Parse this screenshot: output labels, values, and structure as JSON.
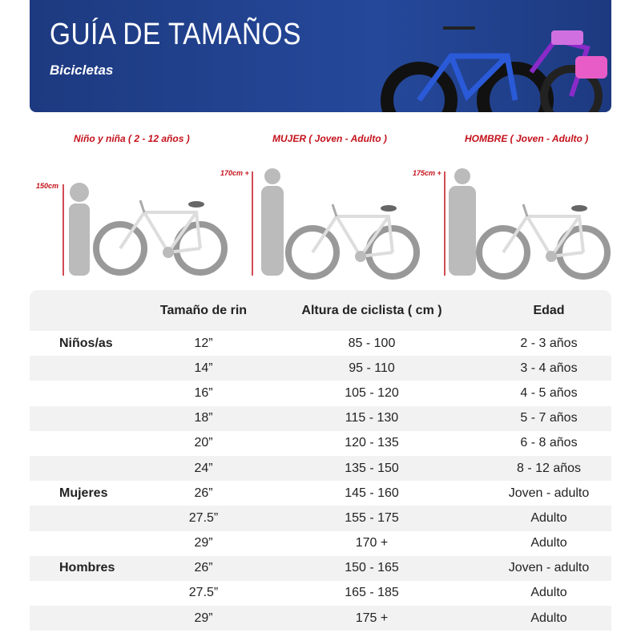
{
  "header": {
    "title": "GUÍA DE TAMAÑOS",
    "subtitle": "Bicicletas"
  },
  "categories": [
    {
      "label": "Niño y niña ( 2 - 12 años )",
      "height_label": "150cm"
    },
    {
      "label": "MUJER ( Joven - Adulto )",
      "height_label": "170cm +"
    },
    {
      "label": "HOMBRE ( Joven - Adulto )",
      "height_label": "175cm +"
    }
  ],
  "table": {
    "headers": [
      "",
      "Tamaño de rin",
      "Altura de ciclista ( cm )",
      "Edad"
    ],
    "rows": [
      [
        "Niños/as",
        "12”",
        "85 - 100",
        "2 - 3 años"
      ],
      [
        "",
        "14”",
        "95 - 110",
        "3 - 4 años"
      ],
      [
        "",
        "16”",
        "105 - 120",
        "4 - 5 años"
      ],
      [
        "",
        "18”",
        "115 - 130",
        "5 - 7 años"
      ],
      [
        "",
        "20”",
        "120 - 135",
        "6 - 8 años"
      ],
      [
        "",
        "24”",
        "135 - 150",
        "8 - 12 años"
      ],
      [
        "Mujeres",
        "26”",
        "145 - 160",
        "Joven - adulto"
      ],
      [
        "",
        "27.5”",
        "155 - 175",
        "Adulto"
      ],
      [
        "",
        "29”",
        "170 +",
        "Adulto"
      ],
      [
        "Hombres",
        "26”",
        "150 - 165",
        "Joven - adulto"
      ],
      [
        "",
        "27.5”",
        "165 - 185",
        "Adulto"
      ],
      [
        "",
        "29”",
        "175 +",
        "Adulto"
      ]
    ]
  },
  "colors": {
    "banner": "#1d3a80",
    "accent": "#c4111b",
    "row_alt": "#f2f2f2"
  }
}
